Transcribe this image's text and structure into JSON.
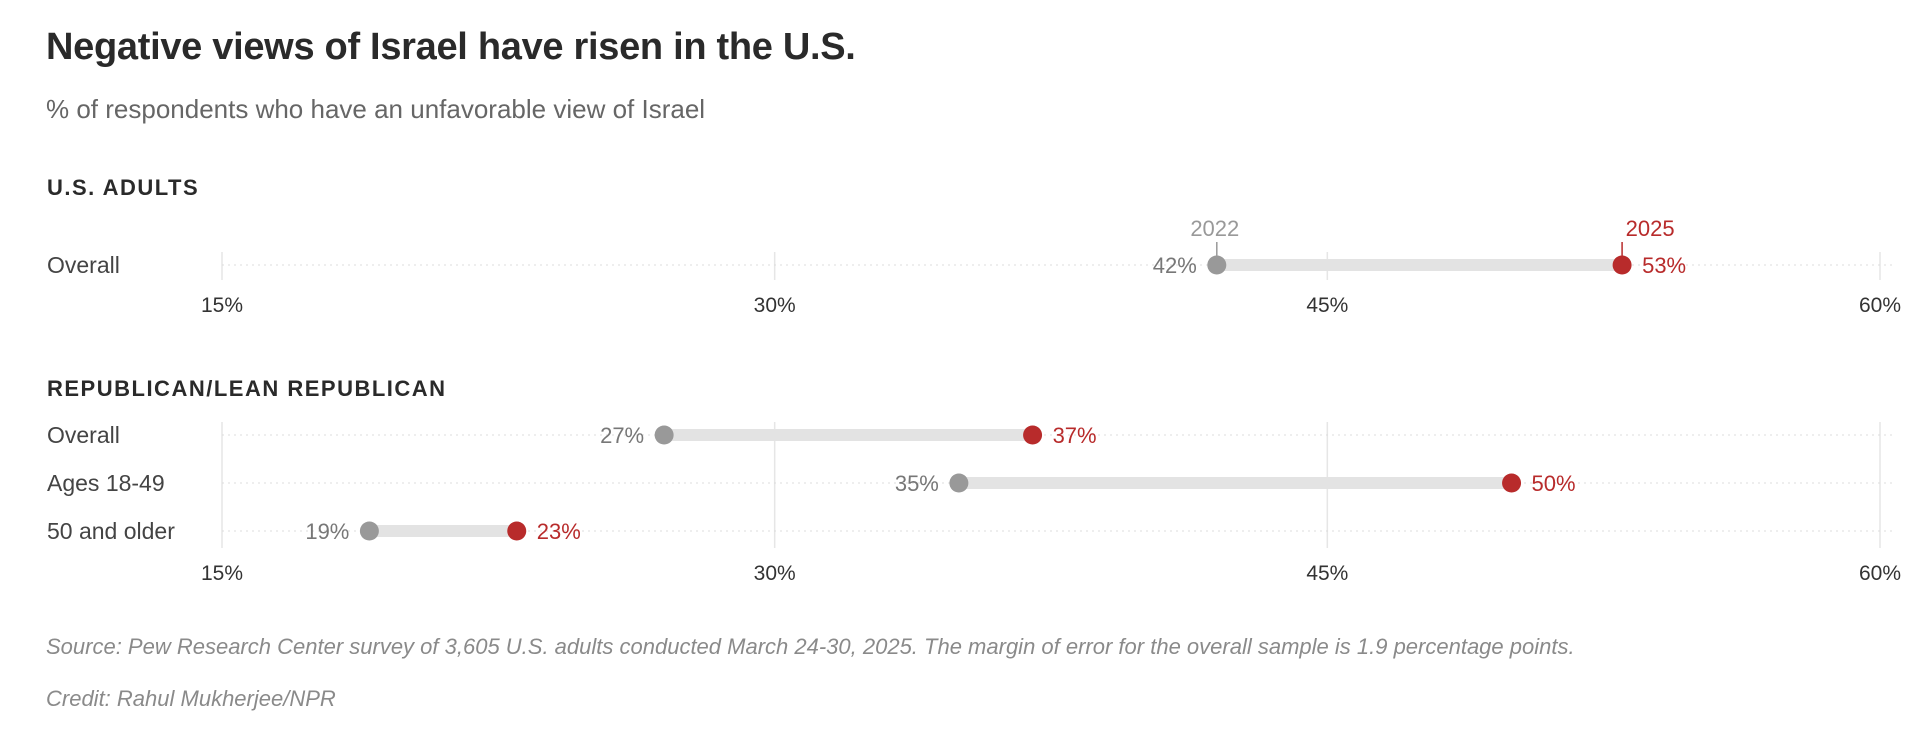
{
  "header": {
    "title": "Negative views of Israel have risen in the U.S.",
    "subtitle": "% of respondents who have an unfavorable view of Israel"
  },
  "colors": {
    "accent": "#b82b2b",
    "past": "#999999",
    "bar": "#e3e3e3",
    "grid": "#e6e6e6",
    "text": "#333333",
    "muted": "#777777"
  },
  "chart_data": {
    "type": "dumbbell",
    "xlim": [
      15,
      60
    ],
    "ticks": [
      15,
      30,
      45,
      60
    ],
    "tick_labels": [
      "15%",
      "30%",
      "45%",
      "60%"
    ],
    "series_names": [
      "2022",
      "2025"
    ],
    "panels": [
      {
        "heading": "U.S. ADULTS",
        "rows": [
          {
            "label": "Overall",
            "start": 42,
            "end": 53,
            "start_label": "42%",
            "end_label": "53%"
          }
        ]
      },
      {
        "heading": "REPUBLICAN/LEAN REPUBLICAN",
        "rows": [
          {
            "label": "Overall",
            "start": 27,
            "end": 37,
            "start_label": "27%",
            "end_label": "37%"
          },
          {
            "label": "Ages 18-49",
            "start": 35,
            "end": 50,
            "start_label": "35%",
            "end_label": "50%"
          },
          {
            "label": "50 and older",
            "start": 19,
            "end": 23,
            "start_label": "19%",
            "end_label": "23%"
          }
        ]
      }
    ]
  },
  "footer": {
    "source": "Source: Pew Research Center survey of 3,605 U.S. adults conducted March 24-30, 2025. The margin of error for the overall sample is 1.9 percentage points.",
    "credit": "Credit: Rahul Mukherjee/NPR"
  }
}
